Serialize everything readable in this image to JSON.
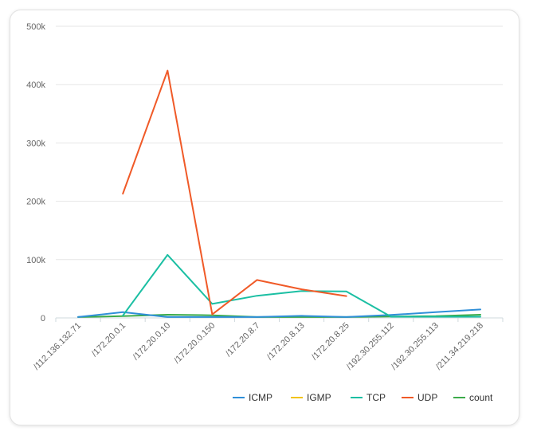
{
  "chart_data": {
    "type": "line",
    "title": "",
    "xlabel": "",
    "ylabel": "",
    "ylim": [
      0,
      500000
    ],
    "yticks": [
      {
        "value": 0,
        "label": "0"
      },
      {
        "value": 100000,
        "label": "100k"
      },
      {
        "value": 200000,
        "label": "200k"
      },
      {
        "value": 300000,
        "label": "300k"
      },
      {
        "value": 400000,
        "label": "400k"
      },
      {
        "value": 500000,
        "label": "500k"
      }
    ],
    "categories": [
      "/112.136.132.71",
      "/172.20.0.1",
      "/172.20.0.10",
      "/172.20.0.150",
      "/172.20.8.7",
      "/172.20.8.13",
      "/172.20.8.25",
      "/192.30.255.112",
      "/192.30.255.113",
      "/211.34.219.218"
    ],
    "grid": "horizontal",
    "legend_position": "bottom-right",
    "series": [
      {
        "name": "ICMP",
        "color": "#2f8fd8",
        "values": [
          1500,
          10000,
          1500,
          1500,
          1500,
          3500,
          1500,
          5000,
          10000,
          14500
        ]
      },
      {
        "name": "IGMP",
        "color": "#f2c316",
        "values": [
          null,
          null,
          null,
          null,
          null,
          null,
          null,
          null,
          null,
          null
        ]
      },
      {
        "name": "TCP",
        "color": "#1bbfa3",
        "values": [
          null,
          4000,
          108000,
          24000,
          38000,
          46000,
          45500,
          2000,
          2000,
          2000
        ]
      },
      {
        "name": "UDP",
        "color": "#f05a28",
        "values": [
          null,
          213000,
          424000,
          6000,
          65000,
          49000,
          37500,
          null,
          null,
          null
        ]
      },
      {
        "name": "count",
        "color": "#3cab4a",
        "values": [
          1500,
          3000,
          5500,
          4500,
          1500,
          1500,
          1500,
          2500,
          3000,
          5500
        ]
      }
    ]
  }
}
